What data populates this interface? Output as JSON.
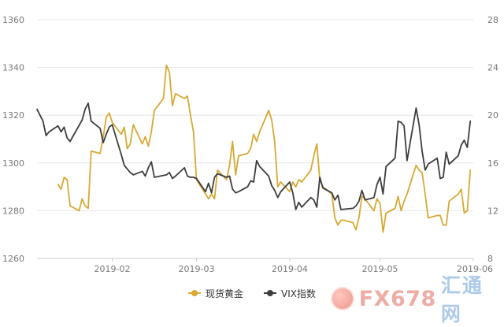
{
  "chart_data": {
    "type": "line",
    "y_left": {
      "min": 1260,
      "max": 1360,
      "ticks": [
        1260,
        1280,
        1300,
        1320,
        1340,
        1360
      ]
    },
    "y_right": {
      "min": 8,
      "max": 28,
      "ticks": [
        8,
        12,
        16,
        20,
        24,
        28
      ]
    },
    "x_tick_labels": [
      "2019-02",
      "2019-03",
      "2019-04",
      "2019-05",
      "2019-06"
    ],
    "x_tick_dates": [
      "2019-02-01",
      "2019-03-01",
      "2019-04-01",
      "2019-05-01",
      "2019-06-01"
    ],
    "x_range": [
      "2019-01-07",
      "2019-06-01"
    ],
    "grid": "horizontal",
    "legend_position": "bottom-center",
    "series": [
      {
        "name": "现货黄金",
        "axis": "left",
        "color": "#d7a933",
        "points": [
          [
            "2019-01-14",
            1291
          ],
          [
            "2019-01-15",
            1289
          ],
          [
            "2019-01-16",
            1294
          ],
          [
            "2019-01-17",
            1293
          ],
          [
            "2019-01-18",
            1282
          ],
          [
            "2019-01-21",
            1280
          ],
          [
            "2019-01-22",
            1285
          ],
          [
            "2019-01-23",
            1282
          ],
          [
            "2019-01-24",
            1281
          ],
          [
            "2019-01-25",
            1305
          ],
          [
            "2019-01-28",
            1304
          ],
          [
            "2019-01-29",
            1311
          ],
          [
            "2019-01-30",
            1319
          ],
          [
            "2019-01-31",
            1321
          ],
          [
            "2019-02-01",
            1317
          ],
          [
            "2019-02-04",
            1312
          ],
          [
            "2019-02-05",
            1315
          ],
          [
            "2019-02-06",
            1306
          ],
          [
            "2019-02-07",
            1308
          ],
          [
            "2019-02-08",
            1316
          ],
          [
            "2019-02-11",
            1308
          ],
          [
            "2019-02-12",
            1311
          ],
          [
            "2019-02-13",
            1307
          ],
          [
            "2019-02-14",
            1313
          ],
          [
            "2019-02-15",
            1322
          ],
          [
            "2019-02-18",
            1327
          ],
          [
            "2019-02-19",
            1341
          ],
          [
            "2019-02-20",
            1338
          ],
          [
            "2019-02-21",
            1324
          ],
          [
            "2019-02-22",
            1329
          ],
          [
            "2019-02-25",
            1327
          ],
          [
            "2019-02-26",
            1328
          ],
          [
            "2019-02-27",
            1320
          ],
          [
            "2019-02-28",
            1313
          ],
          [
            "2019-03-01",
            1293
          ],
          [
            "2019-03-04",
            1287
          ],
          [
            "2019-03-05",
            1285
          ],
          [
            "2019-03-06",
            1287
          ],
          [
            "2019-03-07",
            1285
          ],
          [
            "2019-03-08",
            1297
          ],
          [
            "2019-03-11",
            1293
          ],
          [
            "2019-03-12",
            1299
          ],
          [
            "2019-03-13",
            1309
          ],
          [
            "2019-03-14",
            1295
          ],
          [
            "2019-03-15",
            1303
          ],
          [
            "2019-03-18",
            1304
          ],
          [
            "2019-03-19",
            1306
          ],
          [
            "2019-03-20",
            1312
          ],
          [
            "2019-03-21",
            1309
          ],
          [
            "2019-03-22",
            1313
          ],
          [
            "2019-03-25",
            1322
          ],
          [
            "2019-03-26",
            1318
          ],
          [
            "2019-03-27",
            1309
          ],
          [
            "2019-03-28",
            1290
          ],
          [
            "2019-03-29",
            1292
          ],
          [
            "2019-04-01",
            1288
          ],
          [
            "2019-04-02",
            1292
          ],
          [
            "2019-04-03",
            1290
          ],
          [
            "2019-04-04",
            1293
          ],
          [
            "2019-04-05",
            1292
          ],
          [
            "2019-04-08",
            1297
          ],
          [
            "2019-04-09",
            1303
          ],
          [
            "2019-04-10",
            1308
          ],
          [
            "2019-04-11",
            1293
          ],
          [
            "2019-04-12",
            1290
          ],
          [
            "2019-04-15",
            1287
          ],
          [
            "2019-04-16",
            1277
          ],
          [
            "2019-04-17",
            1274
          ],
          [
            "2019-04-18",
            1276
          ],
          [
            "2019-04-19",
            1276
          ],
          [
            "2019-04-22",
            1275
          ],
          [
            "2019-04-23",
            1272
          ],
          [
            "2019-04-24",
            1277
          ],
          [
            "2019-04-25",
            1286
          ],
          [
            "2019-04-26",
            1285
          ],
          [
            "2019-04-29",
            1280
          ],
          [
            "2019-04-30",
            1285
          ],
          [
            "2019-05-01",
            1283
          ],
          [
            "2019-05-02",
            1271
          ],
          [
            "2019-05-03",
            1279
          ],
          [
            "2019-05-06",
            1281
          ],
          [
            "2019-05-07",
            1286
          ],
          [
            "2019-05-08",
            1280
          ],
          [
            "2019-05-09",
            1284
          ],
          [
            "2019-05-10",
            1287
          ],
          [
            "2019-05-13",
            1299
          ],
          [
            "2019-05-14",
            1297
          ],
          [
            "2019-05-15",
            1296
          ],
          [
            "2019-05-16",
            1287
          ],
          [
            "2019-05-17",
            1277
          ],
          [
            "2019-05-20",
            1278
          ],
          [
            "2019-05-21",
            1278
          ],
          [
            "2019-05-22",
            1274
          ],
          [
            "2019-05-23",
            1274
          ],
          [
            "2019-05-24",
            1284
          ],
          [
            "2019-05-27",
            1287
          ],
          [
            "2019-05-28",
            1289
          ],
          [
            "2019-05-29",
            1279
          ],
          [
            "2019-05-30",
            1280
          ],
          [
            "2019-05-31",
            1297
          ]
        ]
      },
      {
        "name": "VIX指数",
        "axis": "right",
        "color": "#3d3d3d",
        "points": [
          [
            "2019-01-07",
            20.5
          ],
          [
            "2019-01-08",
            20.0
          ],
          [
            "2019-01-09",
            19.5
          ],
          [
            "2019-01-10",
            18.3
          ],
          [
            "2019-01-11",
            18.6
          ],
          [
            "2019-01-14",
            19.1
          ],
          [
            "2019-01-15",
            18.6
          ],
          [
            "2019-01-16",
            19.0
          ],
          [
            "2019-01-17",
            18.1
          ],
          [
            "2019-01-18",
            17.8
          ],
          [
            "2019-01-22",
            19.6
          ],
          [
            "2019-01-23",
            20.5
          ],
          [
            "2019-01-24",
            21.0
          ],
          [
            "2019-01-25",
            19.5
          ],
          [
            "2019-01-28",
            18.9
          ],
          [
            "2019-01-29",
            17.7
          ],
          [
            "2019-01-30",
            18.4
          ],
          [
            "2019-01-31",
            19.0
          ],
          [
            "2019-02-01",
            19.2
          ],
          [
            "2019-02-04",
            16.7
          ],
          [
            "2019-02-05",
            15.8
          ],
          [
            "2019-02-06",
            15.5
          ],
          [
            "2019-02-07",
            15.2
          ],
          [
            "2019-02-08",
            15.0
          ],
          [
            "2019-02-11",
            15.3
          ],
          [
            "2019-02-12",
            14.9
          ],
          [
            "2019-02-13",
            15.6
          ],
          [
            "2019-02-14",
            16.1
          ],
          [
            "2019-02-15",
            14.8
          ],
          [
            "2019-02-19",
            15.0
          ],
          [
            "2019-02-20",
            15.2
          ],
          [
            "2019-02-21",
            14.7
          ],
          [
            "2019-02-22",
            14.9
          ],
          [
            "2019-02-25",
            15.6
          ],
          [
            "2019-02-26",
            14.9
          ],
          [
            "2019-02-27",
            14.8
          ],
          [
            "2019-02-28",
            14.8
          ],
          [
            "2019-03-01",
            14.7
          ],
          [
            "2019-03-04",
            13.6
          ],
          [
            "2019-03-05",
            14.3
          ],
          [
            "2019-03-06",
            13.5
          ],
          [
            "2019-03-07",
            14.8
          ],
          [
            "2019-03-08",
            15.1
          ],
          [
            "2019-03-11",
            14.8
          ],
          [
            "2019-03-12",
            14.9
          ],
          [
            "2019-03-13",
            13.8
          ],
          [
            "2019-03-14",
            13.5
          ],
          [
            "2019-03-15",
            13.6
          ],
          [
            "2019-03-18",
            14.0
          ],
          [
            "2019-03-19",
            14.5
          ],
          [
            "2019-03-20",
            14.4
          ],
          [
            "2019-03-21",
            16.2
          ],
          [
            "2019-03-22",
            15.7
          ],
          [
            "2019-03-25",
            14.9
          ],
          [
            "2019-03-26",
            14.1
          ],
          [
            "2019-03-27",
            13.7
          ],
          [
            "2019-03-28",
            13.1
          ],
          [
            "2019-03-29",
            13.6
          ],
          [
            "2019-04-01",
            14.4
          ],
          [
            "2019-04-02",
            13.5
          ],
          [
            "2019-04-03",
            12.1
          ],
          [
            "2019-04-04",
            12.7
          ],
          [
            "2019-04-05",
            12.3
          ],
          [
            "2019-04-08",
            13.1
          ],
          [
            "2019-04-09",
            12.9
          ],
          [
            "2019-04-10",
            12.3
          ],
          [
            "2019-04-11",
            14.8
          ],
          [
            "2019-04-12",
            13.9
          ],
          [
            "2019-04-15",
            13.5
          ],
          [
            "2019-04-16",
            12.9
          ],
          [
            "2019-04-17",
            13.3
          ],
          [
            "2019-04-18",
            12.1
          ],
          [
            "2019-04-22",
            12.2
          ],
          [
            "2019-04-23",
            12.4
          ],
          [
            "2019-04-24",
            12.8
          ],
          [
            "2019-04-25",
            13.7
          ],
          [
            "2019-04-26",
            12.9
          ],
          [
            "2019-04-29",
            13.1
          ],
          [
            "2019-04-30",
            14.2
          ],
          [
            "2019-05-01",
            14.8
          ],
          [
            "2019-05-02",
            13.4
          ],
          [
            "2019-05-03",
            15.7
          ],
          [
            "2019-05-06",
            16.4
          ],
          [
            "2019-05-07",
            19.5
          ],
          [
            "2019-05-08",
            19.4
          ],
          [
            "2019-05-09",
            19.1
          ],
          [
            "2019-05-10",
            16.2
          ],
          [
            "2019-05-13",
            20.6
          ],
          [
            "2019-05-14",
            19.2
          ],
          [
            "2019-05-15",
            17.0
          ],
          [
            "2019-05-16",
            15.4
          ],
          [
            "2019-05-17",
            15.9
          ],
          [
            "2019-05-20",
            16.4
          ],
          [
            "2019-05-21",
            14.7
          ],
          [
            "2019-05-22",
            14.8
          ],
          [
            "2019-05-23",
            16.9
          ],
          [
            "2019-05-24",
            15.9
          ],
          [
            "2019-05-27",
            16.6
          ],
          [
            "2019-05-28",
            17.5
          ],
          [
            "2019-05-29",
            17.9
          ],
          [
            "2019-05-30",
            17.3
          ],
          [
            "2019-05-31",
            19.5
          ]
        ]
      }
    ]
  },
  "watermark": {
    "latin": "FX678",
    "chinese": "汇通网"
  }
}
